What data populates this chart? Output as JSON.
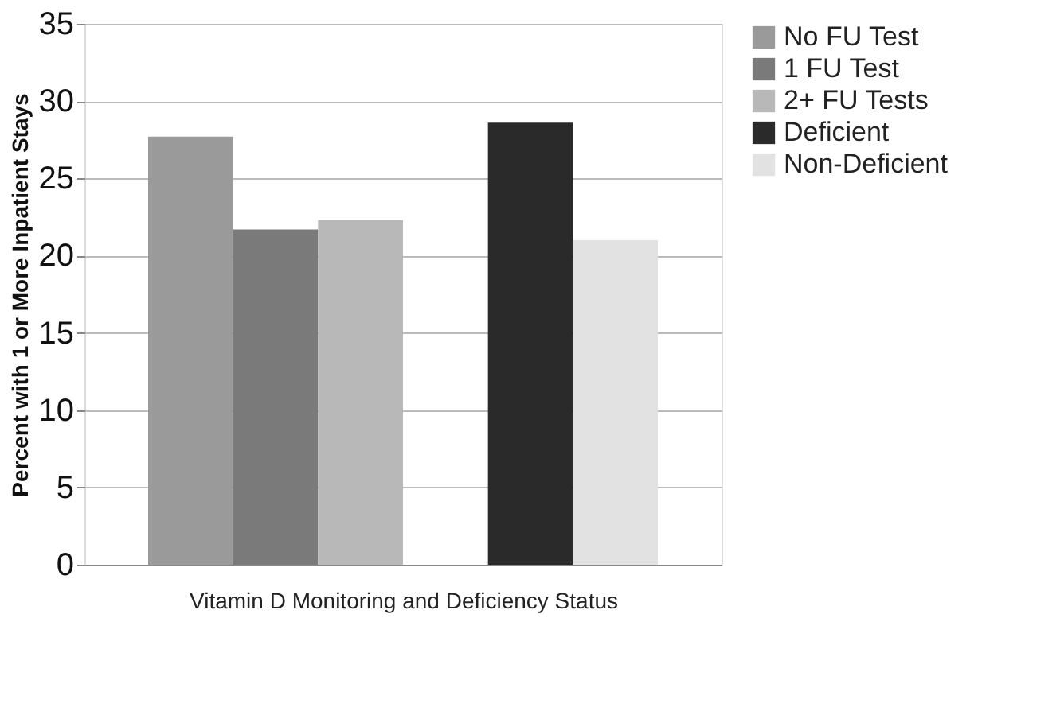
{
  "chart_data": {
    "type": "bar",
    "xlabel": "Vitamin D Monitoring and Deficiency Status",
    "ylabel": "Percent with 1 or More Inpatient Stays",
    "categories": [
      null,
      null,
      null,
      null,
      null,
      null
    ],
    "series": [
      {
        "name": "No FU Test",
        "color": "#9a9a9a",
        "values": [
          27.7,
          null,
          null,
          null,
          null,
          null
        ]
      },
      {
        "name": "1 FU Test",
        "color": "#7a7a7a",
        "values": [
          null,
          21.7,
          null,
          null,
          null,
          null
        ]
      },
      {
        "name": "2+ FU Tests",
        "color": "#b8b8b8",
        "values": [
          null,
          null,
          22.3,
          null,
          null,
          null
        ]
      },
      {
        "name": "Deficient",
        "color": "#2a2a2a",
        "values": [
          null,
          null,
          null,
          null,
          28.6,
          null
        ]
      },
      {
        "name": "Non-Deficient",
        "color": "#e2e2e2",
        "values": [
          null,
          null,
          null,
          null,
          null,
          21.0
        ]
      }
    ],
    "ylim": [
      0,
      35
    ],
    "yticks": [
      0,
      5,
      10,
      15,
      20,
      25,
      30,
      35
    ],
    "grid": "y",
    "legend": "right"
  }
}
